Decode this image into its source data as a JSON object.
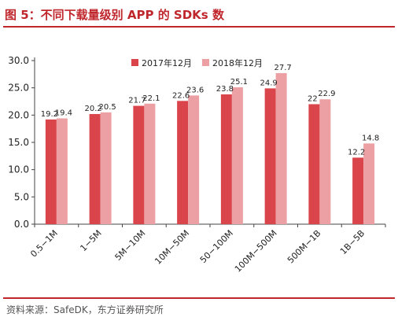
{
  "figure": {
    "title": "图 5：不同下载量级别 APP 的 SDKs 数",
    "source": "资料来源：SafeDK，东方证券研究所"
  },
  "colors": {
    "accent": "#c0272d",
    "series_2017": "#d9454b",
    "series_2018": "#eda0a3"
  },
  "chart_data": {
    "type": "bar",
    "categories": [
      "0.5−1M",
      "1−5M",
      "5M−10M",
      "10M−50M",
      "50−100M",
      "100M−500M",
      "500M−1B",
      "1B−5B"
    ],
    "series": [
      {
        "name": "2017年12月",
        "values": [
          19.2,
          20.2,
          21.7,
          22.6,
          23.8,
          24.9,
          22.0,
          12.2
        ]
      },
      {
        "name": "2018年12月",
        "values": [
          19.4,
          20.5,
          22.1,
          23.6,
          25.1,
          27.7,
          22.9,
          14.8
        ]
      }
    ],
    "yticks": [
      "0.0",
      "5.0",
      "10.0",
      "15.0",
      "20.0",
      "25.0",
      "30.0"
    ],
    "ylim": [
      0,
      30
    ],
    "grid": false,
    "legend": "top"
  }
}
